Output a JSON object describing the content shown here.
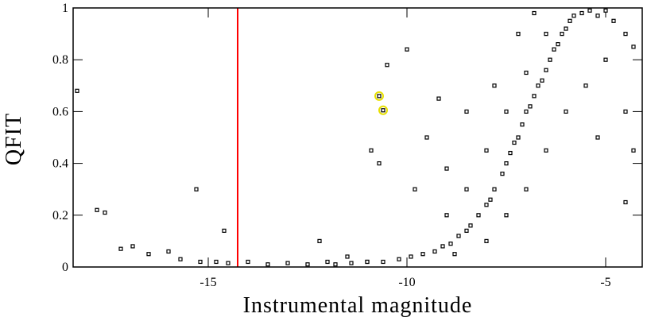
{
  "chart_data": {
    "type": "scatter",
    "x_label": "Instrumental magnitude",
    "y_label": "QFIT",
    "xlim": [
      -18.4,
      -4.08
    ],
    "ylim": [
      0,
      1
    ],
    "xticks": [
      -15,
      -10,
      -5
    ],
    "yticks": [
      0,
      0.2,
      0.4,
      0.6,
      0.8,
      1
    ],
    "vline": {
      "x": -14.26,
      "color": "#ff0000"
    },
    "series": [
      {
        "color": "#000000",
        "x": [
          -18.3,
          -17.8,
          -17.6,
          -17.2,
          -16.9,
          -16.5,
          -16.0,
          -15.7,
          -15.3,
          -15.2,
          -14.6,
          -14.8,
          -14.5,
          -14.0,
          -13.5,
          -13.0,
          -12.5,
          -12.2,
          -12.0,
          -11.5,
          -11.0,
          -10.9,
          -10.7,
          -10.5,
          -10.0,
          -9.5,
          -9.8,
          -9.2,
          -9.0,
          -11.8,
          -11.4,
          -11.0,
          -10.6,
          -10.2,
          -9.9,
          -9.6,
          -9.3,
          -9.1,
          -8.9,
          -8.7,
          -8.5,
          -8.4,
          -8.2,
          -8.0,
          -7.9,
          -7.8,
          -7.6,
          -7.5,
          -7.4,
          -7.3,
          -7.2,
          -7.1,
          -7.0,
          -6.9,
          -6.8,
          -6.7,
          -6.6,
          -6.5,
          -6.4,
          -6.3,
          -6.2,
          -6.1,
          -6.0,
          -5.9,
          -5.8,
          -5.6,
          -5.4,
          -5.2,
          -5.0,
          -4.8,
          -4.5,
          -4.3,
          -9.0,
          -8.5,
          -8.0,
          -7.5,
          -7.0,
          -6.5,
          -8.8,
          -8.0,
          -7.5,
          -7.0,
          -6.5,
          -6.0,
          -5.5,
          -5.0,
          -4.5,
          -4.3,
          -4.5,
          -5.2,
          -7.8,
          -8.5,
          -6.8,
          -7.2
        ],
        "values": [
          0.68,
          0.22,
          0.21,
          0.07,
          0.08,
          0.05,
          0.06,
          0.03,
          0.3,
          0.02,
          0.14,
          0.02,
          0.015,
          0.02,
          0.01,
          0.015,
          0.01,
          0.1,
          0.02,
          0.04,
          0.02,
          0.45,
          0.4,
          0.78,
          0.84,
          0.5,
          0.3,
          0.65,
          0.38,
          0.01,
          0.015,
          0.02,
          0.02,
          0.03,
          0.04,
          0.05,
          0.06,
          0.08,
          0.09,
          0.12,
          0.14,
          0.16,
          0.2,
          0.24,
          0.26,
          0.3,
          0.36,
          0.4,
          0.44,
          0.48,
          0.5,
          0.55,
          0.6,
          0.62,
          0.66,
          0.7,
          0.72,
          0.76,
          0.8,
          0.84,
          0.86,
          0.9,
          0.92,
          0.95,
          0.97,
          0.98,
          0.99,
          0.97,
          0.99,
          0.95,
          0.9,
          0.85,
          0.2,
          0.3,
          0.45,
          0.6,
          0.75,
          0.9,
          0.05,
          0.1,
          0.2,
          0.3,
          0.45,
          0.6,
          0.7,
          0.8,
          0.6,
          0.45,
          0.25,
          0.5,
          0.7,
          0.6,
          0.98,
          0.9
        ]
      },
      {
        "color": "#e8e000",
        "x": [
          -10.7,
          -10.6
        ],
        "values": [
          0.66,
          0.605
        ]
      }
    ]
  }
}
